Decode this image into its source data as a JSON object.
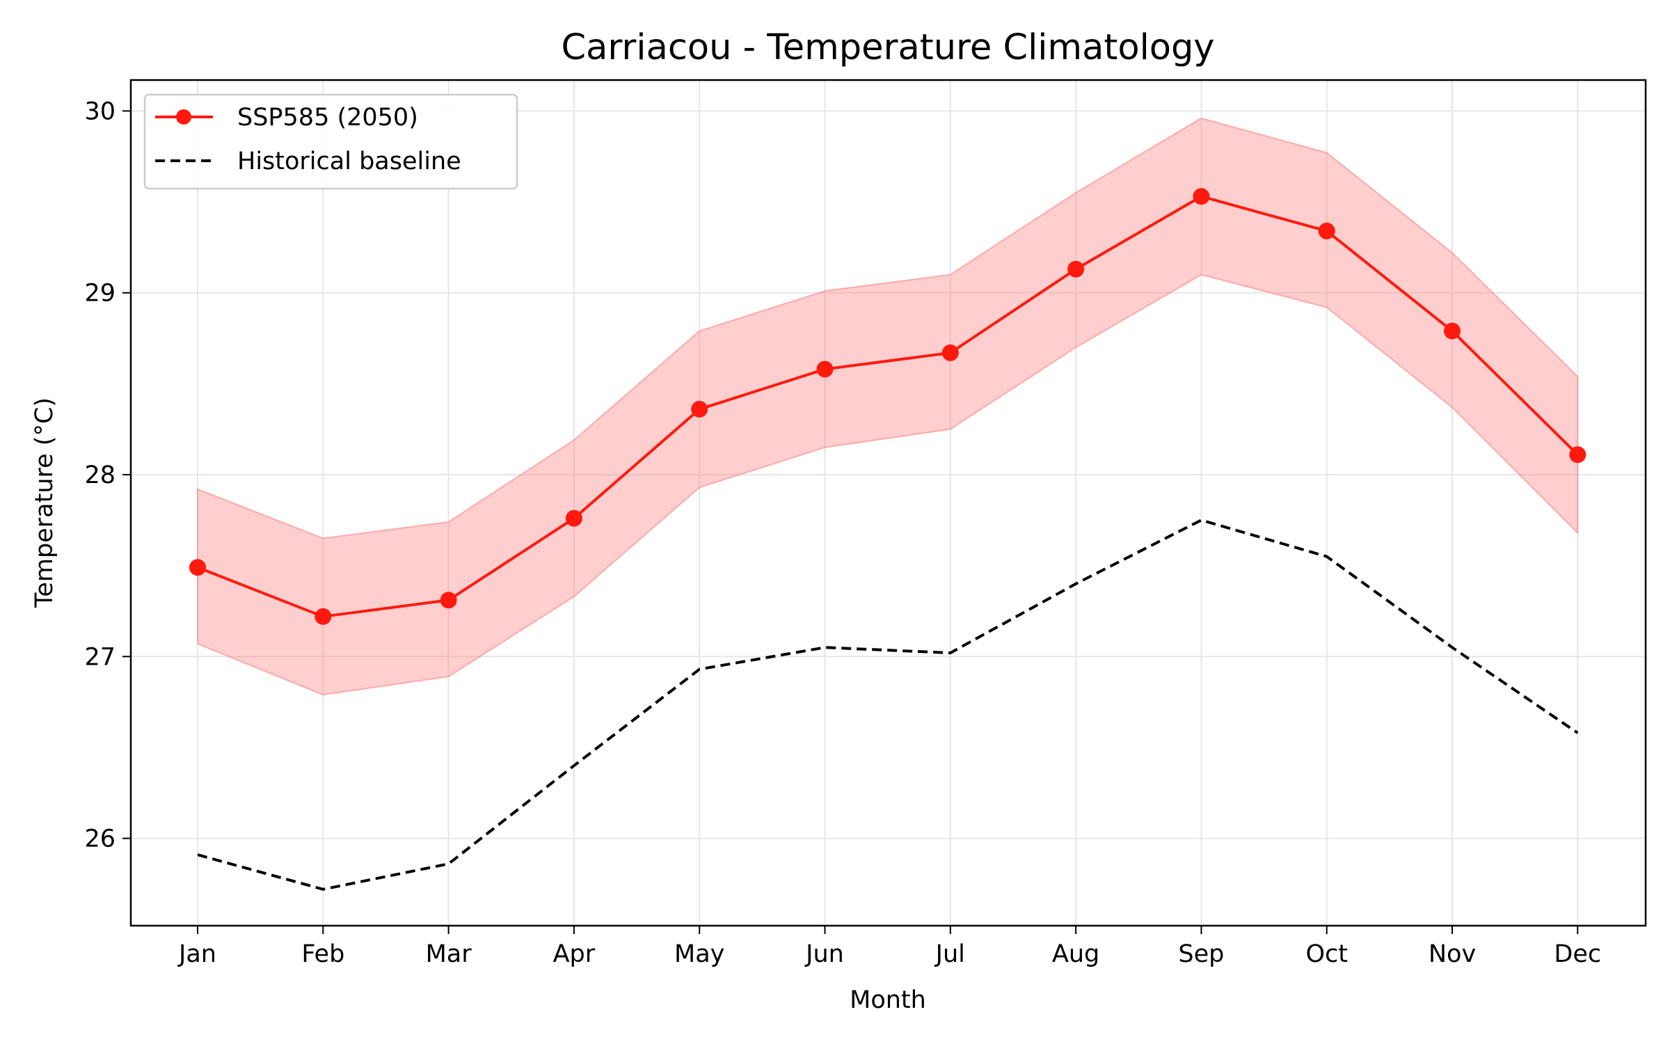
{
  "chart_data": {
    "type": "line",
    "title": "Carriacou - Temperature Climatology",
    "xlabel": "Month",
    "ylabel": "Temperature (°C)",
    "categories": [
      "Jan",
      "Feb",
      "Mar",
      "Apr",
      "May",
      "Jun",
      "Jul",
      "Aug",
      "Sep",
      "Oct",
      "Nov",
      "Dec"
    ],
    "ylim": [
      25.52,
      30.17
    ],
    "yticks": [
      26,
      27,
      28,
      29,
      30
    ],
    "grid": true,
    "legend_position": "top-left",
    "series": [
      {
        "name": "SSP585 (2050)",
        "style": "solid-with-markers",
        "color": "#ff1a0d",
        "values": [
          27.49,
          27.22,
          27.31,
          27.76,
          28.36,
          28.58,
          28.67,
          29.13,
          29.53,
          29.34,
          28.79,
          28.11
        ],
        "band_lower": [
          27.07,
          26.79,
          26.89,
          27.33,
          27.93,
          28.15,
          28.25,
          28.7,
          29.1,
          28.92,
          28.37,
          27.68
        ],
        "band_upper": [
          27.92,
          27.65,
          27.74,
          28.19,
          28.79,
          29.01,
          29.1,
          29.55,
          29.96,
          29.77,
          29.22,
          28.54
        ],
        "band_color": "#ff8080"
      },
      {
        "name": "Historical baseline",
        "style": "dashed",
        "color": "#000000",
        "values": [
          25.91,
          25.72,
          25.86,
          26.4,
          26.93,
          27.05,
          27.02,
          27.4,
          27.75,
          27.55,
          27.05,
          26.58
        ]
      }
    ]
  }
}
